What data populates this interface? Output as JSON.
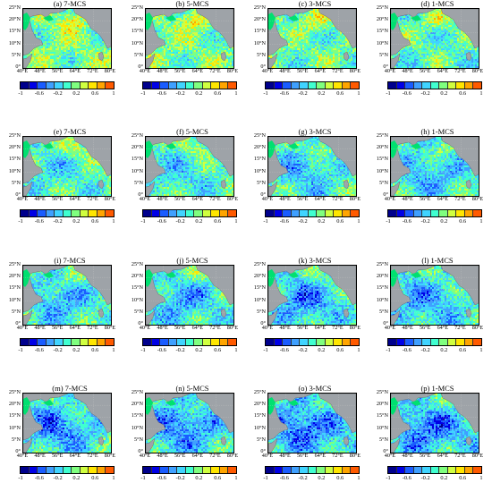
{
  "figure": {
    "panels": [
      {
        "label": "(a) 7-MCS",
        "bias": 0.0,
        "strength": 0.0
      },
      {
        "label": "(b) 5-MCS",
        "bias": 0.02,
        "strength": 0.0
      },
      {
        "label": "(c) 3-MCS",
        "bias": 0.06,
        "strength": 0.0
      },
      {
        "label": "(d) 1-MCS",
        "bias": 0.12,
        "strength": 0.0
      },
      {
        "label": "(e) 7-MCS",
        "bias": 0.05,
        "strength": 0.4
      },
      {
        "label": "(f) 5-MCS",
        "bias": 0.07,
        "strength": 0.45
      },
      {
        "label": "(g) 3-MCS",
        "bias": 0.1,
        "strength": 0.55
      },
      {
        "label": "(h) 1-MCS",
        "bias": 0.14,
        "strength": 0.5
      },
      {
        "label": "(i) 7-MCS",
        "bias": 0.08,
        "strength": 0.7
      },
      {
        "label": "(j) 5-MCS",
        "bias": 0.1,
        "strength": 0.7
      },
      {
        "label": "(k) 3-MCS",
        "bias": 0.13,
        "strength": 0.75
      },
      {
        "label": "(l) 1-MCS",
        "bias": 0.16,
        "strength": 0.6
      },
      {
        "label": "(m) 7-MCS",
        "bias": 0.12,
        "strength": 0.9
      },
      {
        "label": "(n) 5-MCS",
        "bias": 0.14,
        "strength": 0.9
      },
      {
        "label": "(o) 3-MCS",
        "bias": 0.17,
        "strength": 0.95
      },
      {
        "label": "(p) 1-MCS",
        "bias": 0.19,
        "strength": 0.8
      }
    ],
    "lat_labels": [
      "25°N",
      "20°N",
      "15°N",
      "10°N",
      "5°N",
      "0°"
    ],
    "lon_labels": [
      "40°E",
      "48°E",
      "56°E",
      "64°E",
      "72°E",
      "80°E"
    ],
    "colorbar_ticks": [
      "-1",
      "-0.6",
      "-0.2",
      "0.2",
      "0.6",
      "1"
    ],
    "colorbar_colors": [
      "#00008c",
      "#0000e6",
      "#1a5cff",
      "#3fa0ff",
      "#40d4ff",
      "#40ffd0",
      "#7fff7f",
      "#d0ff40",
      "#ffe600",
      "#ffa500",
      "#ff5a00"
    ],
    "colors": {
      "land": "#9ea3a8",
      "coast_green": "#00e070",
      "grid": "#c8c8c8"
    }
  }
}
